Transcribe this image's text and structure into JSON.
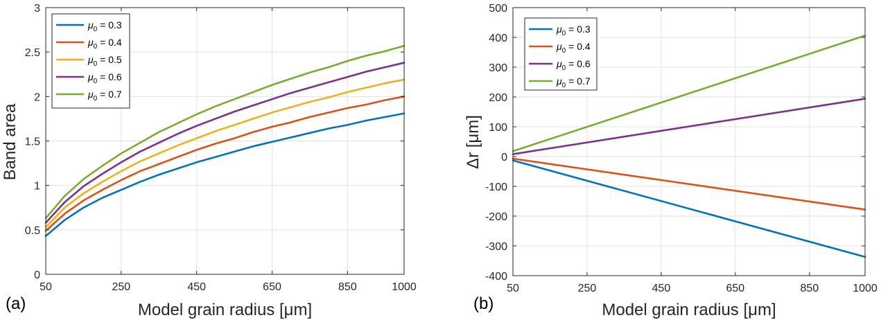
{
  "chart_data": [
    {
      "type": "line",
      "panel_label": "(a)",
      "xlabel": "Model grain radius [μm]",
      "ylabel": "Band area",
      "xlim": [
        50,
        1000
      ],
      "ylim": [
        0,
        3
      ],
      "xticks": [
        50,
        250,
        450,
        650,
        850,
        1000
      ],
      "xtick_labels": [
        "50",
        "250",
        "450",
        "650",
        "850",
        "1000"
      ],
      "yticks": [
        0,
        0.5,
        1,
        1.5,
        2,
        2.5,
        3
      ],
      "ytick_labels": [
        "0",
        "0.5",
        "1",
        "1.5",
        "2",
        "2.5",
        "3"
      ],
      "grid": true,
      "legend_position": "top-left",
      "x": [
        50,
        100,
        150,
        200,
        250,
        300,
        350,
        400,
        450,
        500,
        550,
        600,
        650,
        700,
        750,
        800,
        850,
        900,
        950,
        1000
      ],
      "series": [
        {
          "name": "μ0 = 0.3",
          "legend_prefix": "μ",
          "legend_sub": "0",
          "legend_suffix": " = 0.3",
          "color": "#0072BD",
          "values": [
            0.43,
            0.61,
            0.75,
            0.86,
            0.95,
            1.04,
            1.12,
            1.19,
            1.26,
            1.32,
            1.38,
            1.44,
            1.49,
            1.54,
            1.59,
            1.64,
            1.68,
            1.73,
            1.77,
            1.81
          ]
        },
        {
          "name": "μ0 = 0.4",
          "legend_prefix": "μ",
          "legend_sub": "0",
          "legend_suffix": " = 0.4",
          "color": "#D95319",
          "values": [
            0.49,
            0.68,
            0.83,
            0.95,
            1.06,
            1.16,
            1.24,
            1.32,
            1.4,
            1.47,
            1.53,
            1.6,
            1.66,
            1.71,
            1.77,
            1.82,
            1.87,
            1.91,
            1.96,
            2.0
          ]
        },
        {
          "name": "μ0 = 0.5",
          "legend_prefix": "μ",
          "legend_sub": "0",
          "legend_suffix": " = 0.5",
          "color": "#EDB120",
          "values": [
            0.53,
            0.75,
            0.91,
            1.04,
            1.16,
            1.27,
            1.36,
            1.45,
            1.53,
            1.61,
            1.68,
            1.75,
            1.82,
            1.88,
            1.94,
            1.99,
            2.05,
            2.1,
            2.15,
            2.19
          ]
        },
        {
          "name": "μ0 = 0.6",
          "legend_prefix": "μ",
          "legend_sub": "0",
          "legend_suffix": " = 0.6",
          "color": "#7E2F8E",
          "values": [
            0.58,
            0.81,
            0.99,
            1.13,
            1.26,
            1.38,
            1.48,
            1.58,
            1.67,
            1.75,
            1.83,
            1.9,
            1.97,
            2.04,
            2.1,
            2.16,
            2.22,
            2.28,
            2.33,
            2.38
          ]
        },
        {
          "name": "μ0 = 0.7",
          "legend_prefix": "μ",
          "legend_sub": "0",
          "legend_suffix": " = 0.7",
          "color": "#77AC30",
          "values": [
            0.63,
            0.88,
            1.07,
            1.22,
            1.36,
            1.48,
            1.6,
            1.7,
            1.8,
            1.89,
            1.97,
            2.05,
            2.13,
            2.2,
            2.27,
            2.33,
            2.4,
            2.46,
            2.51,
            2.57
          ]
        }
      ]
    },
    {
      "type": "line",
      "panel_label": "(b)",
      "xlabel": "Model grain radius [μm]",
      "ylabel": "Δr [μm]",
      "xlim": [
        50,
        1000
      ],
      "ylim": [
        -400,
        500
      ],
      "xticks": [
        50,
        250,
        450,
        650,
        850,
        1000
      ],
      "xtick_labels": [
        "50",
        "250",
        "450",
        "650",
        "850",
        "1000"
      ],
      "yticks": [
        -400,
        -300,
        -200,
        -100,
        0,
        100,
        200,
        300,
        400,
        500
      ],
      "ytick_labels": [
        "-400",
        "-300",
        "-200",
        "-100",
        "0",
        "100",
        "200",
        "300",
        "400",
        "500"
      ],
      "grid": true,
      "legend_position": "top-left",
      "x": [
        50,
        1000
      ],
      "series": [
        {
          "name": "μ0 = 0.3",
          "legend_prefix": "μ",
          "legend_sub": "0",
          "legend_suffix": " = 0.3",
          "color": "#0072BD",
          "values": [
            -13,
            -337
          ]
        },
        {
          "name": "μ0 = 0.4",
          "legend_prefix": "μ",
          "legend_sub": "0",
          "legend_suffix": " = 0.4",
          "color": "#D95319",
          "values": [
            -7,
            -178
          ]
        },
        {
          "name": "μ0 = 0.6",
          "legend_prefix": "μ",
          "legend_sub": "0",
          "legend_suffix": " = 0.6",
          "color": "#7E2F8E",
          "values": [
            8,
            194
          ]
        },
        {
          "name": "μ0 = 0.7",
          "legend_prefix": "μ",
          "legend_sub": "0",
          "legend_suffix": " = 0.7",
          "color": "#77AC30",
          "values": [
            18,
            406
          ]
        }
      ]
    }
  ]
}
